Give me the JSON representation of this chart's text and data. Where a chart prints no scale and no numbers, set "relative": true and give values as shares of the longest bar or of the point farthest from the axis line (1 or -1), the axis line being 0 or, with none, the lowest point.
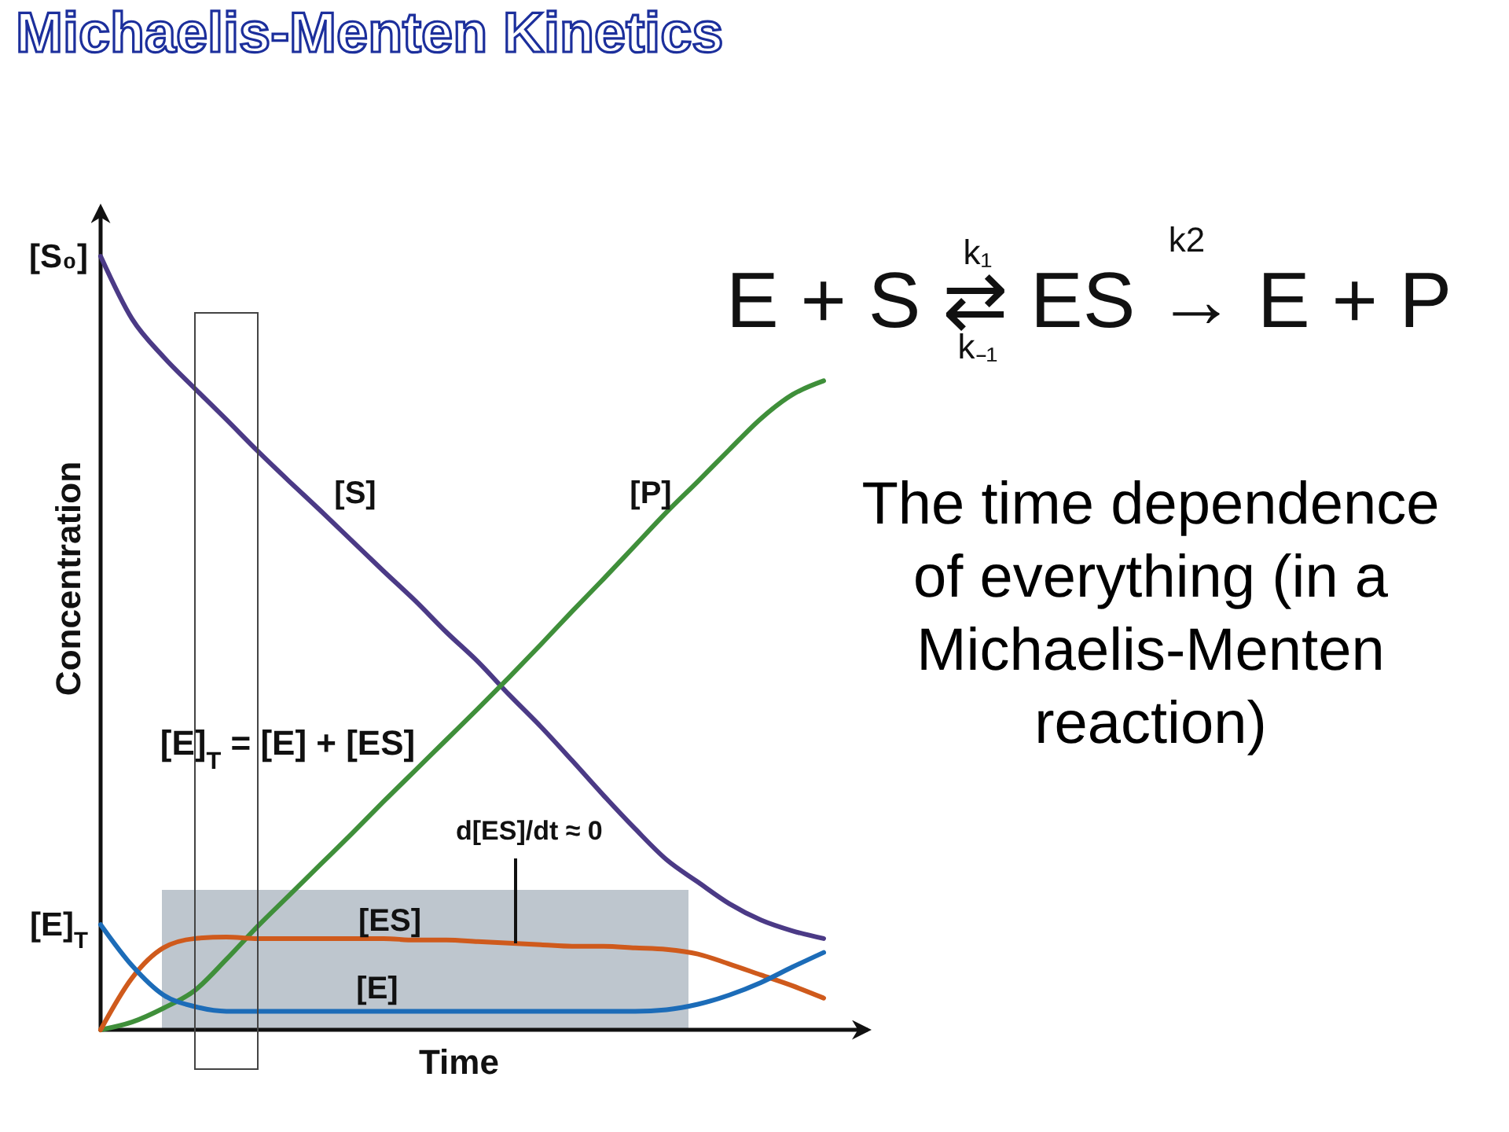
{
  "chart_data": {
    "type": "line",
    "title": "Michaelis-Menten Kinetics",
    "xlabel": "Time",
    "ylabel": "Concentration",
    "relative": true,
    "categories": [
      null,
      null,
      null,
      null,
      null,
      null,
      null,
      null,
      null,
      null,
      null,
      null,
      null,
      null,
      null,
      null,
      null,
      null,
      null,
      null,
      null,
      null,
      null,
      null
    ],
    "series": [
      {
        "name": "[S]",
        "color": "#4b3a86",
        "values": [
          1.0,
          0.919,
          0.87,
          0.829,
          0.789,
          0.748,
          0.709,
          0.671,
          0.632,
          0.593,
          0.555,
          0.514,
          0.476,
          0.433,
          0.392,
          0.348,
          0.303,
          0.26,
          0.22,
          0.191,
          0.163,
          0.142,
          0.128,
          0.118
        ]
      },
      {
        "name": "[P]",
        "color": "#3f8f3a",
        "values": [
          0,
          0.01,
          0.028,
          0.051,
          0.091,
          0.134,
          0.174,
          0.214,
          0.254,
          0.295,
          0.335,
          0.375,
          0.415,
          0.456,
          0.498,
          0.541,
          0.583,
          0.626,
          0.669,
          0.709,
          0.75,
          0.79,
          0.821,
          0.839
        ]
      },
      {
        "name": "[ES]",
        "color": "#cf5a1c",
        "values": [
          0,
          0.067,
          0.106,
          0.118,
          0.12,
          0.118,
          0.118,
          0.118,
          0.118,
          0.118,
          0.116,
          0.116,
          0.114,
          0.112,
          0.11,
          0.108,
          0.108,
          0.106,
          0.104,
          0.098,
          0.085,
          0.071,
          0.057,
          0.041
        ]
      },
      {
        "name": "[E]",
        "color": "#1c6cb8",
        "values": [
          0.136,
          0.083,
          0.045,
          0.03,
          0.024,
          0.024,
          0.024,
          0.024,
          0.024,
          0.024,
          0.024,
          0.024,
          0.024,
          0.024,
          0.024,
          0.024,
          0.024,
          0.024,
          0.026,
          0.033,
          0.045,
          0.061,
          0.081,
          0.1
        ]
      }
    ],
    "annotations": [
      "[E]$_{T}$ = [E] + [ES]",
      "d[ES]/dt ≈ 0",
      "E + S ⇄ ES → E + P",
      "k₁",
      "k₋₁",
      "k2",
      "The time dependence of everything (in a Michaelis-Menten reaction)",
      "[S₀]",
      "[E]$_{T}$"
    ]
  }
}
